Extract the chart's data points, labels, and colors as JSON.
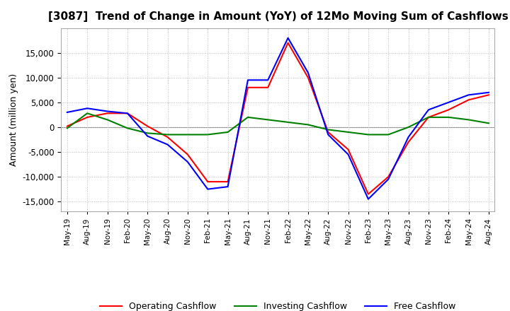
{
  "title": "[3087]  Trend of Change in Amount (YoY) of 12Mo Moving Sum of Cashflows",
  "ylabel": "Amount (million yen)",
  "ylim": [
    -17000,
    20000
  ],
  "yticks": [
    -15000,
    -10000,
    -5000,
    0,
    5000,
    10000,
    15000
  ],
  "background_color": "#ffffff",
  "grid_color": "#bbbbbb",
  "x_labels": [
    "May-19",
    "Aug-19",
    "Nov-19",
    "Feb-20",
    "May-20",
    "Aug-20",
    "Nov-20",
    "Feb-21",
    "May-21",
    "Aug-21",
    "Nov-21",
    "Feb-22",
    "May-22",
    "Aug-22",
    "Nov-22",
    "Feb-23",
    "May-23",
    "Aug-23",
    "Nov-23",
    "Feb-24",
    "May-24",
    "Aug-24"
  ],
  "operating_cashflow": [
    200,
    2000,
    2800,
    2800,
    200,
    -2000,
    -5500,
    -11000,
    -11000,
    8000,
    8000,
    17000,
    10000,
    -1000,
    -4500,
    -13500,
    -10000,
    -3000,
    2000,
    3500,
    5500,
    6500
  ],
  "investing_cashflow": [
    -200,
    2800,
    1500,
    -200,
    -1200,
    -1500,
    -1500,
    -1500,
    -1000,
    2000,
    1500,
    1000,
    500,
    -500,
    -1000,
    -1500,
    -1500,
    0,
    2000,
    2000,
    1500,
    800
  ],
  "free_cashflow": [
    3000,
    3800,
    3200,
    2800,
    -1800,
    -3500,
    -7000,
    -12500,
    -12000,
    9500,
    9500,
    18000,
    11000,
    -1500,
    -5500,
    -14500,
    -10500,
    -2000,
    3500,
    5000,
    6500,
    7000
  ],
  "operating_color": "#ff0000",
  "investing_color": "#008000",
  "free_color": "#0000ff",
  "legend_labels": [
    "Operating Cashflow",
    "Investing Cashflow",
    "Free Cashflow"
  ]
}
